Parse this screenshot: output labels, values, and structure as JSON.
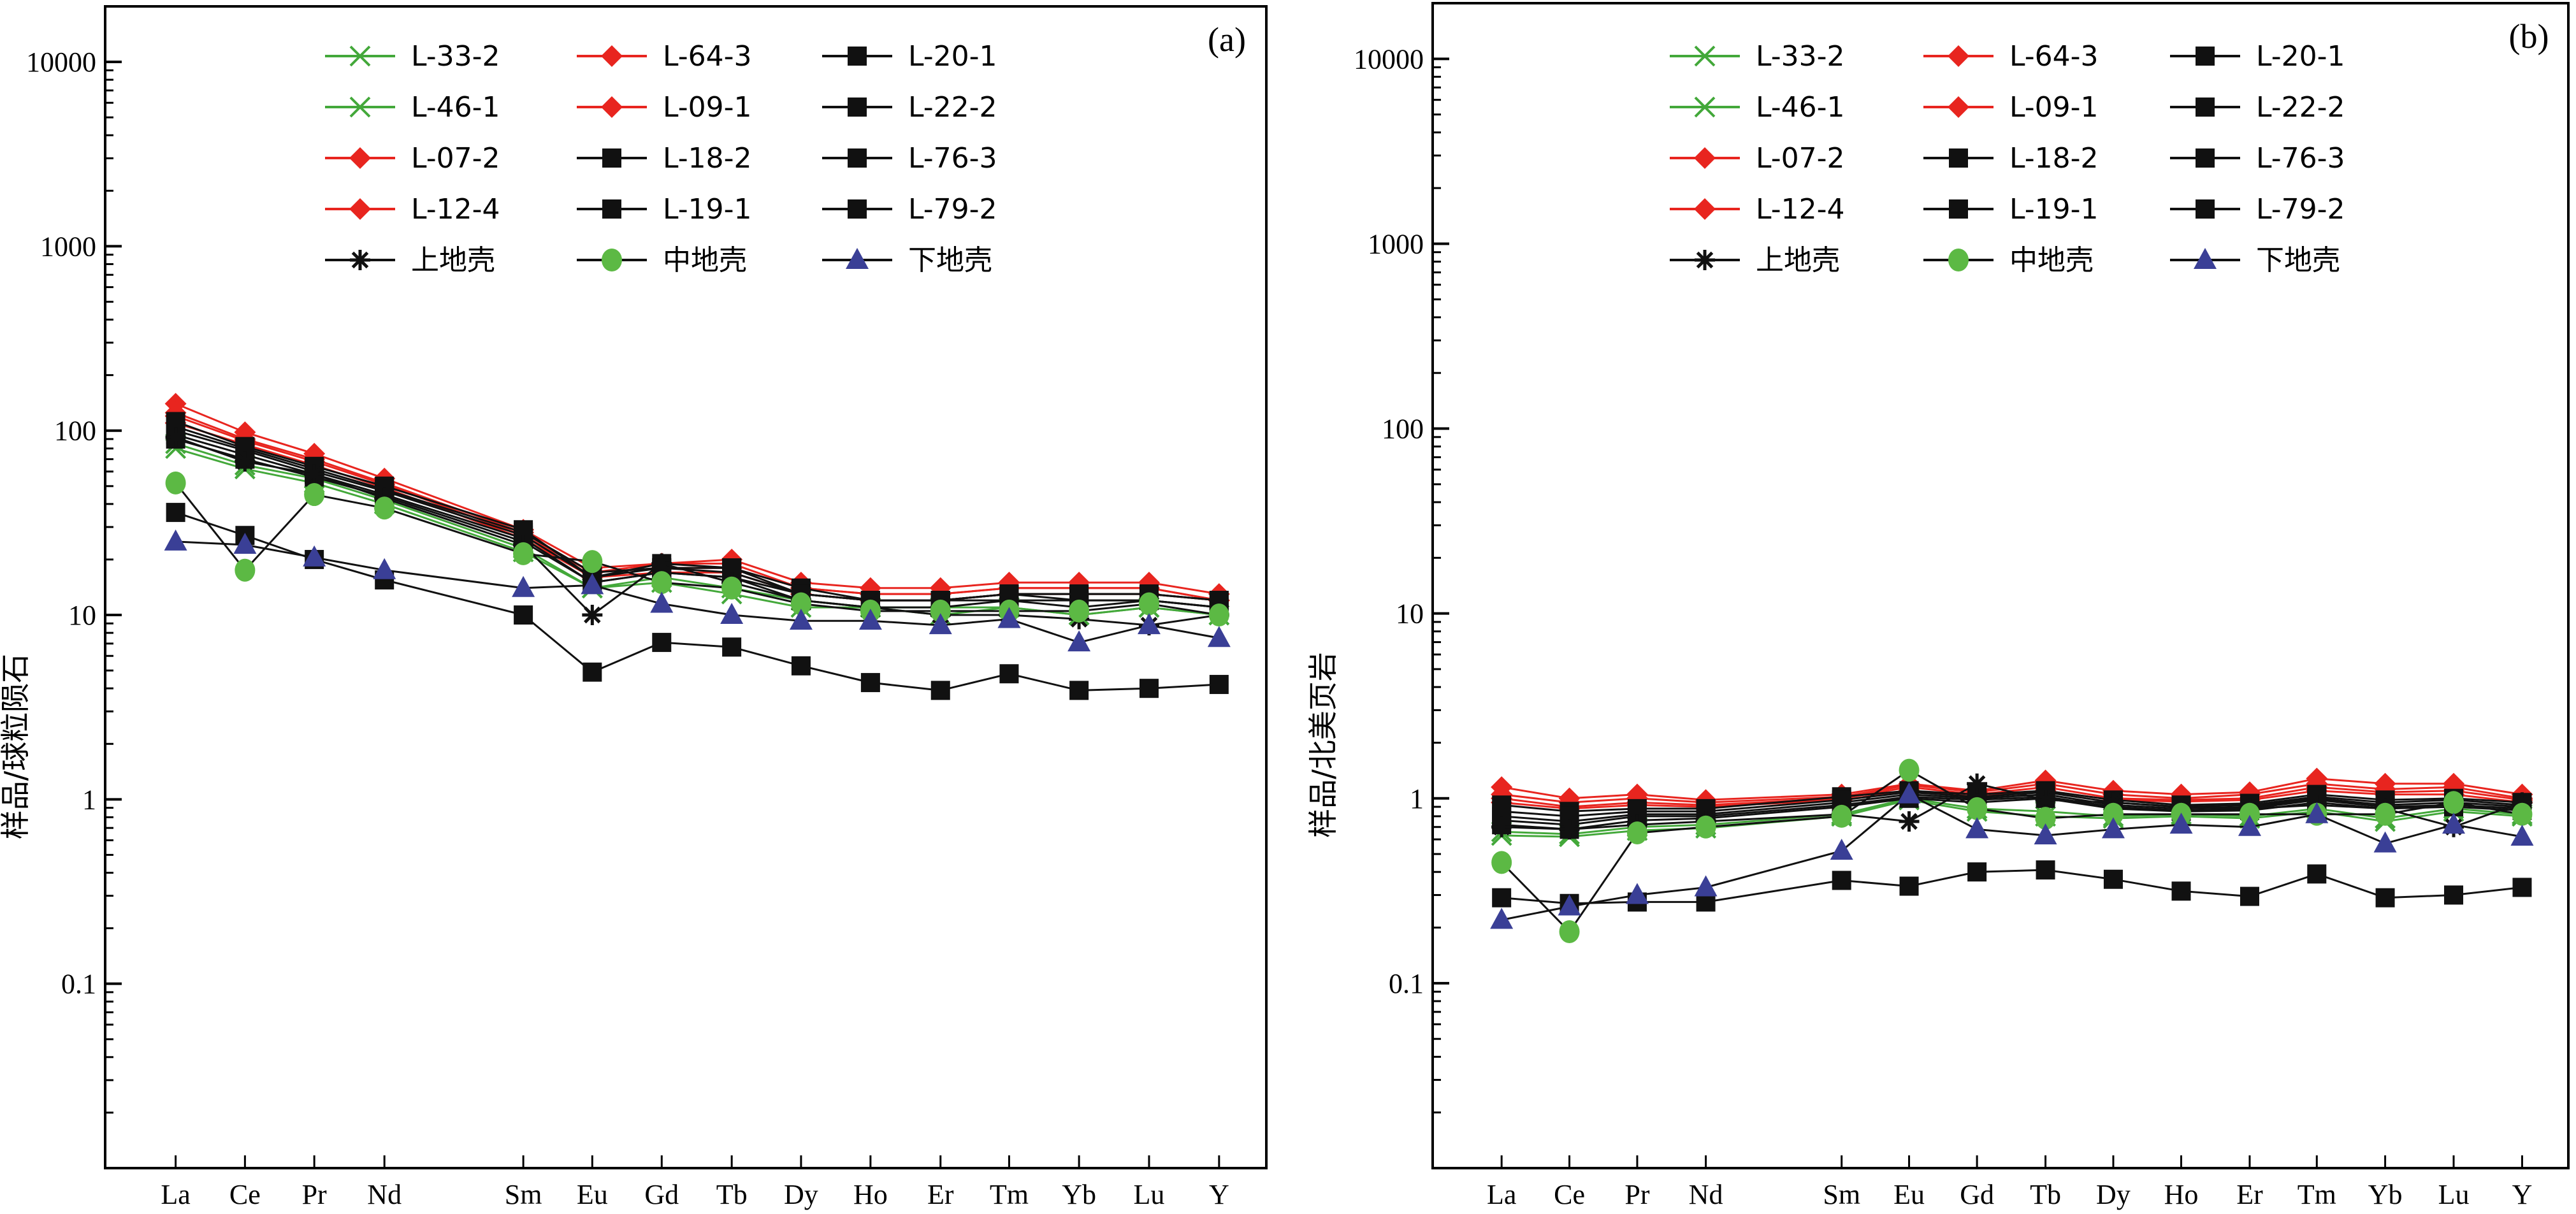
{
  "colors": {
    "green": "#43a83a",
    "red": "#e8251f",
    "black": "#111111",
    "middle": "#5cb944",
    "lower": "#3a3f96"
  },
  "chart_data": [
    {
      "type": "line",
      "panel_label": "(a)",
      "ylabel": "样品/球粒陨石",
      "yscale": "log",
      "ylim": [
        0.01,
        20000
      ],
      "yticks": [
        "0.1",
        "1",
        "10",
        "100",
        "1000",
        "10000"
      ],
      "categories": [
        "La",
        "Ce",
        "Pr",
        "Nd",
        "Sm",
        "Eu",
        "Gd",
        "Tb",
        "Dy",
        "Ho",
        "Er",
        "Tm",
        "Yb",
        "Lu",
        "Y"
      ],
      "series": [
        {
          "name": "L-33-2",
          "marker": "x",
          "color": "green",
          "values": [
            80,
            62,
            52,
            40,
            22,
            14,
            15,
            13,
            11,
            11,
            10,
            11,
            10,
            11,
            10
          ]
        },
        {
          "name": "L-46-1",
          "marker": "x",
          "color": "green",
          "values": [
            85,
            65,
            55,
            42,
            23,
            14,
            16,
            14,
            12,
            11,
            11,
            11,
            10,
            11,
            10
          ]
        },
        {
          "name": "L-07-2",
          "marker": "diamond",
          "color": "red",
          "values": [
            120,
            88,
            68,
            51,
            27,
            17,
            18,
            18,
            14,
            13,
            13,
            14,
            14,
            14,
            12
          ]
        },
        {
          "name": "L-12-4",
          "marker": "diamond",
          "color": "red",
          "values": [
            110,
            84,
            65,
            49,
            26,
            16,
            17,
            17,
            13,
            12,
            12,
            13,
            13,
            13,
            12
          ]
        },
        {
          "name": "L-64-3",
          "marker": "diamond",
          "color": "red",
          "values": [
            140,
            98,
            75,
            55,
            29,
            18,
            19,
            20,
            15,
            14,
            14,
            15,
            15,
            15,
            13
          ]
        },
        {
          "name": "L-09-1",
          "marker": "diamond",
          "color": "red",
          "values": [
            125,
            90,
            70,
            52,
            28,
            17,
            19,
            19,
            14,
            13,
            13,
            14,
            14,
            14,
            12
          ]
        },
        {
          "name": "L-18-2",
          "marker": "square",
          "color": "black",
          "values": [
            100,
            78,
            60,
            47,
            27,
            16,
            18,
            17,
            13,
            12,
            12,
            13,
            12,
            12,
            11
          ]
        },
        {
          "name": "L-19-1",
          "marker": "square",
          "color": "black",
          "values": [
            95,
            74,
            58,
            45,
            26,
            15,
            17,
            16,
            13,
            12,
            12,
            12,
            12,
            12,
            11
          ]
        },
        {
          "name": "L-20-1",
          "marker": "square",
          "color": "black",
          "values": [
            112,
            82,
            64,
            50,
            29,
            16,
            19,
            18,
            14,
            12,
            12,
            13,
            13,
            13,
            12
          ]
        },
        {
          "name": "L-22-2",
          "marker": "square",
          "color": "black",
          "values": [
            90,
            70,
            56,
            44,
            25,
            15,
            17,
            16,
            12,
            11,
            11,
            12,
            11,
            12,
            11
          ]
        },
        {
          "name": "L-76-3",
          "marker": "square",
          "color": "black",
          "values": [
            105,
            80,
            62,
            48,
            28,
            17,
            18,
            18,
            13,
            12,
            12,
            13,
            13,
            13,
            12
          ]
        },
        {
          "name": "L-79-2",
          "marker": "square",
          "color": "black",
          "values": [
            36,
            27,
            20,
            15.5,
            10,
            4.9,
            7.1,
            6.7,
            5.3,
            4.3,
            3.9,
            4.8,
            3.9,
            4.0,
            4.2
          ]
        },
        {
          "name": "上地壳",
          "marker": "asterisk",
          "color": "black",
          "values": [
            92,
            68,
            58,
            43,
            24,
            10,
            19,
            15,
            12,
            11,
            10,
            10,
            9.5,
            8.8,
            10
          ]
        },
        {
          "name": "中地壳",
          "marker": "circle",
          "color": "middle",
          "values": [
            52,
            17.5,
            45,
            38,
            21.5,
            19.5,
            15,
            14,
            11.5,
            10.5,
            10.5,
            10.5,
            10.5,
            11.5,
            10
          ]
        },
        {
          "name": "下地壳",
          "marker": "triangle",
          "color": "lower",
          "values": [
            25,
            24,
            20.5,
            17.5,
            14,
            14.5,
            11.5,
            10,
            9.3,
            9.3,
            8.8,
            9.5,
            7.1,
            8.8,
            7.5
          ]
        }
      ]
    },
    {
      "type": "line",
      "panel_label": "(b)",
      "ylabel": "样品/北美页岩",
      "yscale": "log",
      "ylim": [
        0.01,
        20000
      ],
      "yticks": [
        "0.1",
        "1",
        "10",
        "100",
        "1000",
        "10000"
      ],
      "categories": [
        "La",
        "Ce",
        "Pr",
        "Nd",
        "Sm",
        "Eu",
        "Gd",
        "Tb",
        "Dy",
        "Ho",
        "Er",
        "Tm",
        "Yb",
        "Lu",
        "Y"
      ],
      "series": [
        {
          "name": "L-33-2",
          "marker": "x",
          "color": "green",
          "values": [
            0.63,
            0.62,
            0.67,
            0.69,
            0.8,
            0.98,
            0.85,
            0.8,
            0.78,
            0.8,
            0.78,
            0.85,
            0.75,
            0.85,
            0.8
          ]
        },
        {
          "name": "L-46-1",
          "marker": "x",
          "color": "green",
          "values": [
            0.66,
            0.64,
            0.7,
            0.72,
            0.82,
            1.0,
            0.88,
            0.85,
            0.8,
            0.82,
            0.8,
            0.88,
            0.78,
            0.88,
            0.82
          ]
        },
        {
          "name": "L-07-2",
          "marker": "diamond",
          "color": "red",
          "values": [
            1.0,
            0.9,
            0.95,
            0.92,
            1.0,
            1.15,
            1.05,
            1.15,
            1.0,
            0.98,
            1.0,
            1.15,
            1.08,
            1.1,
            0.98
          ]
        },
        {
          "name": "L-12-4",
          "marker": "diamond",
          "color": "red",
          "values": [
            0.95,
            0.88,
            0.92,
            0.9,
            0.98,
            1.1,
            1.02,
            1.1,
            0.98,
            0.96,
            0.98,
            1.1,
            1.05,
            1.05,
            0.95
          ]
        },
        {
          "name": "L-64-3",
          "marker": "diamond",
          "color": "red",
          "values": [
            1.15,
            1.0,
            1.05,
            0.98,
            1.05,
            1.2,
            1.1,
            1.25,
            1.1,
            1.05,
            1.08,
            1.28,
            1.2,
            1.2,
            1.05
          ]
        },
        {
          "name": "L-09-1",
          "marker": "diamond",
          "color": "red",
          "values": [
            1.05,
            0.95,
            1.0,
            0.95,
            1.02,
            1.18,
            1.08,
            1.2,
            1.05,
            1.0,
            1.05,
            1.2,
            1.12,
            1.15,
            1.0
          ]
        },
        {
          "name": "L-18-2",
          "marker": "square",
          "color": "black",
          "values": [
            0.8,
            0.75,
            0.82,
            0.82,
            0.95,
            1.05,
            1.0,
            1.05,
            0.92,
            0.88,
            0.9,
            1.0,
            0.92,
            0.95,
            0.9
          ]
        },
        {
          "name": "L-19-1",
          "marker": "square",
          "color": "black",
          "values": [
            0.76,
            0.72,
            0.8,
            0.8,
            0.92,
            1.02,
            0.98,
            1.02,
            0.9,
            0.86,
            0.88,
            0.98,
            0.9,
            0.92,
            0.88
          ]
        },
        {
          "name": "L-20-1",
          "marker": "square",
          "color": "black",
          "values": [
            0.92,
            0.85,
            0.88,
            0.88,
            1.02,
            1.1,
            1.05,
            1.1,
            0.98,
            0.92,
            0.94,
            1.05,
            0.98,
            1.0,
            0.95
          ]
        },
        {
          "name": "L-22-2",
          "marker": "square",
          "color": "black",
          "values": [
            0.72,
            0.68,
            0.76,
            0.78,
            0.9,
            1.0,
            0.95,
            1.0,
            0.88,
            0.85,
            0.86,
            0.95,
            0.88,
            0.9,
            0.86
          ]
        },
        {
          "name": "L-76-3",
          "marker": "square",
          "color": "black",
          "values": [
            0.85,
            0.8,
            0.85,
            0.85,
            0.98,
            1.08,
            1.02,
            1.08,
            0.95,
            0.9,
            0.92,
            1.02,
            0.95,
            0.98,
            0.92
          ]
        },
        {
          "name": "L-79-2",
          "marker": "square",
          "color": "black",
          "values": [
            0.29,
            0.27,
            0.275,
            0.275,
            0.36,
            0.335,
            0.4,
            0.41,
            0.365,
            0.315,
            0.295,
            0.39,
            0.29,
            0.3,
            0.33
          ]
        },
        {
          "name": "上地壳",
          "marker": "asterisk",
          "color": "black",
          "values": [
            0.7,
            0.68,
            0.72,
            0.75,
            0.82,
            0.75,
            1.2,
            0.98,
            0.95,
            0.9,
            0.88,
            0.92,
            0.88,
            0.7,
            0.95
          ]
        },
        {
          "name": "中地壳",
          "marker": "circle",
          "color": "middle",
          "values": [
            0.45,
            0.19,
            0.65,
            0.7,
            0.8,
            1.42,
            0.88,
            0.78,
            0.82,
            0.82,
            0.82,
            0.82,
            0.82,
            0.95,
            0.82
          ]
        },
        {
          "name": "下地壳",
          "marker": "triangle",
          "color": "lower",
          "values": [
            0.22,
            0.26,
            0.3,
            0.33,
            0.52,
            1.05,
            0.68,
            0.63,
            0.68,
            0.72,
            0.7,
            0.82,
            0.57,
            0.72,
            0.62
          ]
        }
      ]
    }
  ]
}
